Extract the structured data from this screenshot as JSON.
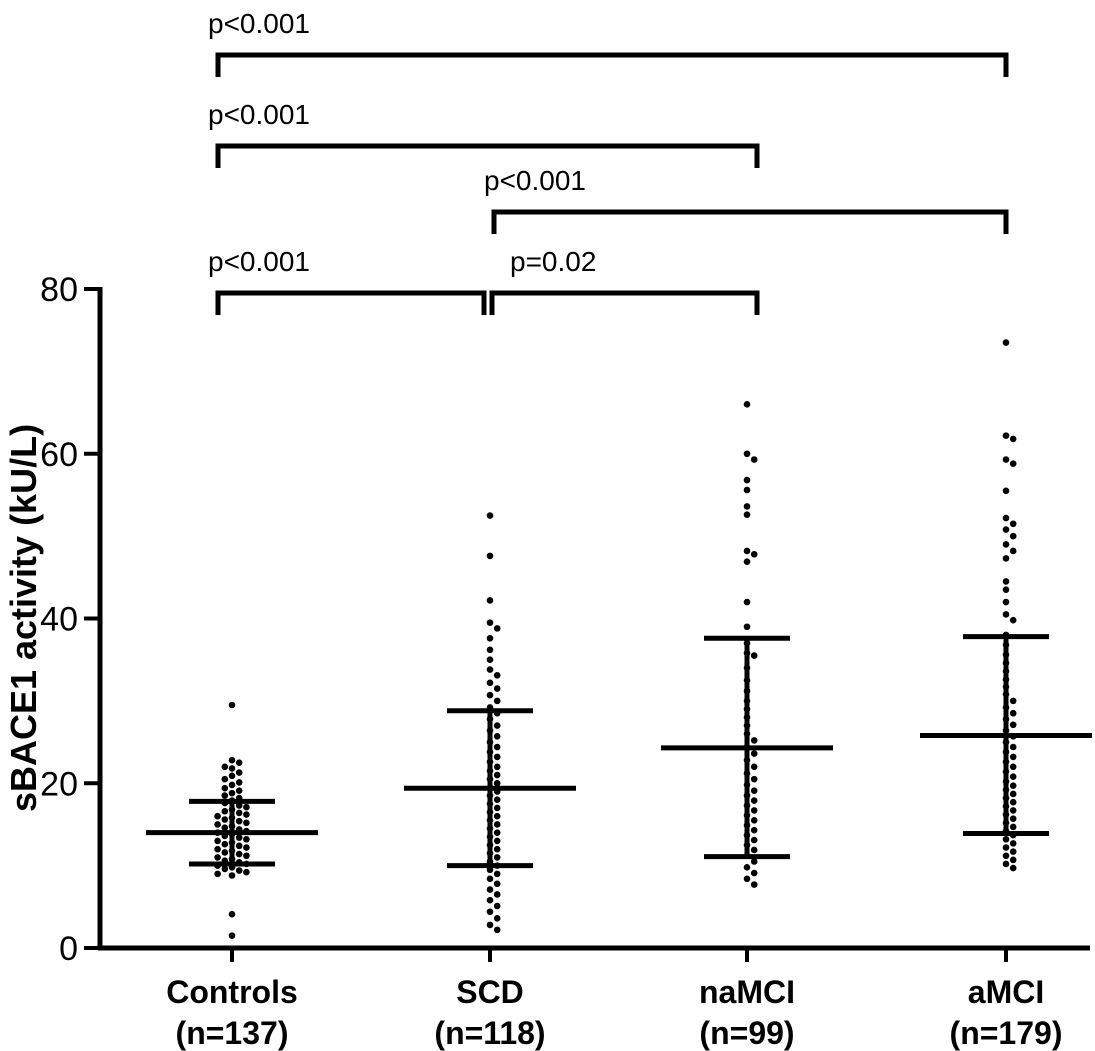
{
  "chart_data": {
    "type": "scatter",
    "subtype": "dot-plot-with-mean-sd",
    "ylabel": "sBACE1 activity (kU/L)",
    "ylim": [
      0,
      80
    ],
    "yticks": [
      0,
      20,
      40,
      60,
      80
    ],
    "groups": [
      {
        "name": "Controls",
        "n_label": "(n=137)",
        "n": 137,
        "mean": 14,
        "sd_low": 10.2,
        "sd_high": 17.8,
        "values": [
          29.5,
          22.8,
          22.5,
          22.0,
          21.8,
          21.3,
          20.9,
          20.5,
          20.1,
          19.8,
          19.4,
          19.1,
          18.8,
          18.5,
          18.2,
          17.9,
          17.6,
          17.3,
          17.1,
          16.8,
          16.6,
          16.4,
          16.2,
          16.0,
          15.8,
          15.6,
          15.4,
          15.2,
          15.0,
          14.8,
          14.6,
          14.4,
          14.2,
          14.0,
          13.8,
          13.6,
          13.4,
          13.2,
          13.0,
          12.8,
          12.6,
          12.4,
          12.2,
          12.0,
          11.8,
          11.6,
          11.4,
          11.2,
          11.0,
          10.8,
          10.6,
          10.4,
          10.2,
          10.0,
          9.8,
          9.6,
          9.4,
          9.2,
          9.0,
          8.8,
          4.1,
          1.5
        ]
      },
      {
        "name": "SCD",
        "n_label": "(n=118)",
        "n": 118,
        "mean": 19.4,
        "sd_low": 10.0,
        "sd_high": 28.8,
        "values": [
          52.5,
          47.6,
          42.2,
          39.5,
          38.8,
          37.6,
          36.2,
          35.0,
          33.8,
          33.1,
          32.2,
          31.5,
          30.7,
          30.0,
          29.2,
          28.5,
          27.8,
          27.0,
          26.4,
          25.7,
          25.0,
          24.4,
          23.8,
          23.2,
          22.6,
          22.0,
          21.5,
          21.0,
          20.5,
          20.0,
          19.5,
          19.0,
          18.5,
          18.0,
          17.5,
          17.0,
          16.5,
          16.0,
          15.5,
          15.0,
          14.5,
          14.0,
          13.5,
          13.0,
          12.5,
          12.0,
          11.5,
          11.0,
          10.5,
          10.0,
          9.5,
          9.0,
          8.4,
          7.8,
          7.1,
          6.5,
          5.8,
          5.1,
          4.4,
          3.6,
          2.8,
          2.2
        ]
      },
      {
        "name": "naMCI",
        "n_label": "(n=99)",
        "n": 99,
        "mean": 24.3,
        "sd_low": 11.1,
        "sd_high": 37.6,
        "values": [
          66.0,
          60.0,
          59.3,
          56.8,
          55.6,
          53.6,
          52.6,
          48.2,
          47.8,
          46.9,
          42.0,
          39.0,
          37.0,
          35.8,
          35.5,
          34.0,
          32.5,
          31.2,
          30.0,
          29.0,
          28.0,
          27.0,
          26.0,
          25.2,
          24.4,
          23.6,
          22.8,
          22.0,
          21.2,
          20.5,
          19.8,
          19.1,
          18.5,
          17.9,
          17.3,
          16.7,
          16.1,
          15.5,
          14.9,
          14.3,
          13.7,
          13.1,
          12.5,
          11.9,
          11.2,
          10.5,
          9.8,
          9.1,
          8.4,
          7.7
        ]
      },
      {
        "name": "aMCI",
        "n_label": "(n=179)",
        "n": 179,
        "mean": 25.8,
        "sd_low": 13.9,
        "sd_high": 37.8,
        "values": [
          73.5,
          62.2,
          61.8,
          59.3,
          58.8,
          55.5,
          52.2,
          51.5,
          50.8,
          50.0,
          49.0,
          48.2,
          47.3,
          44.5,
          43.5,
          42.0,
          40.5,
          39.8,
          38.0,
          36.8,
          35.6,
          34.6,
          33.6,
          32.6,
          31.7,
          30.8,
          30.0,
          29.2,
          28.5,
          27.8,
          27.1,
          26.4,
          25.7,
          25.0,
          24.4,
          23.8,
          23.2,
          22.6,
          22.0,
          21.4,
          20.8,
          20.2,
          19.7,
          19.2,
          18.7,
          18.2,
          17.7,
          17.2,
          16.7,
          16.2,
          15.7,
          15.2,
          14.7,
          14.2,
          13.7,
          13.2,
          12.7,
          12.2,
          11.7,
          11.2,
          10.7,
          10.2,
          9.7
        ]
      }
    ],
    "comparisons": [
      {
        "from": 0,
        "to": 3,
        "label": "p<0.001",
        "level": 4
      },
      {
        "from": 0,
        "to": 2,
        "label": "p<0.001",
        "level": 3
      },
      {
        "from": 1,
        "to": 3,
        "label": "p<0.001",
        "level": 2
      },
      {
        "from": 0,
        "to": 1,
        "label": "p<0.001",
        "level": 1
      },
      {
        "from": 1,
        "to": 2,
        "label": "p=0.02",
        "level": 1
      }
    ]
  }
}
